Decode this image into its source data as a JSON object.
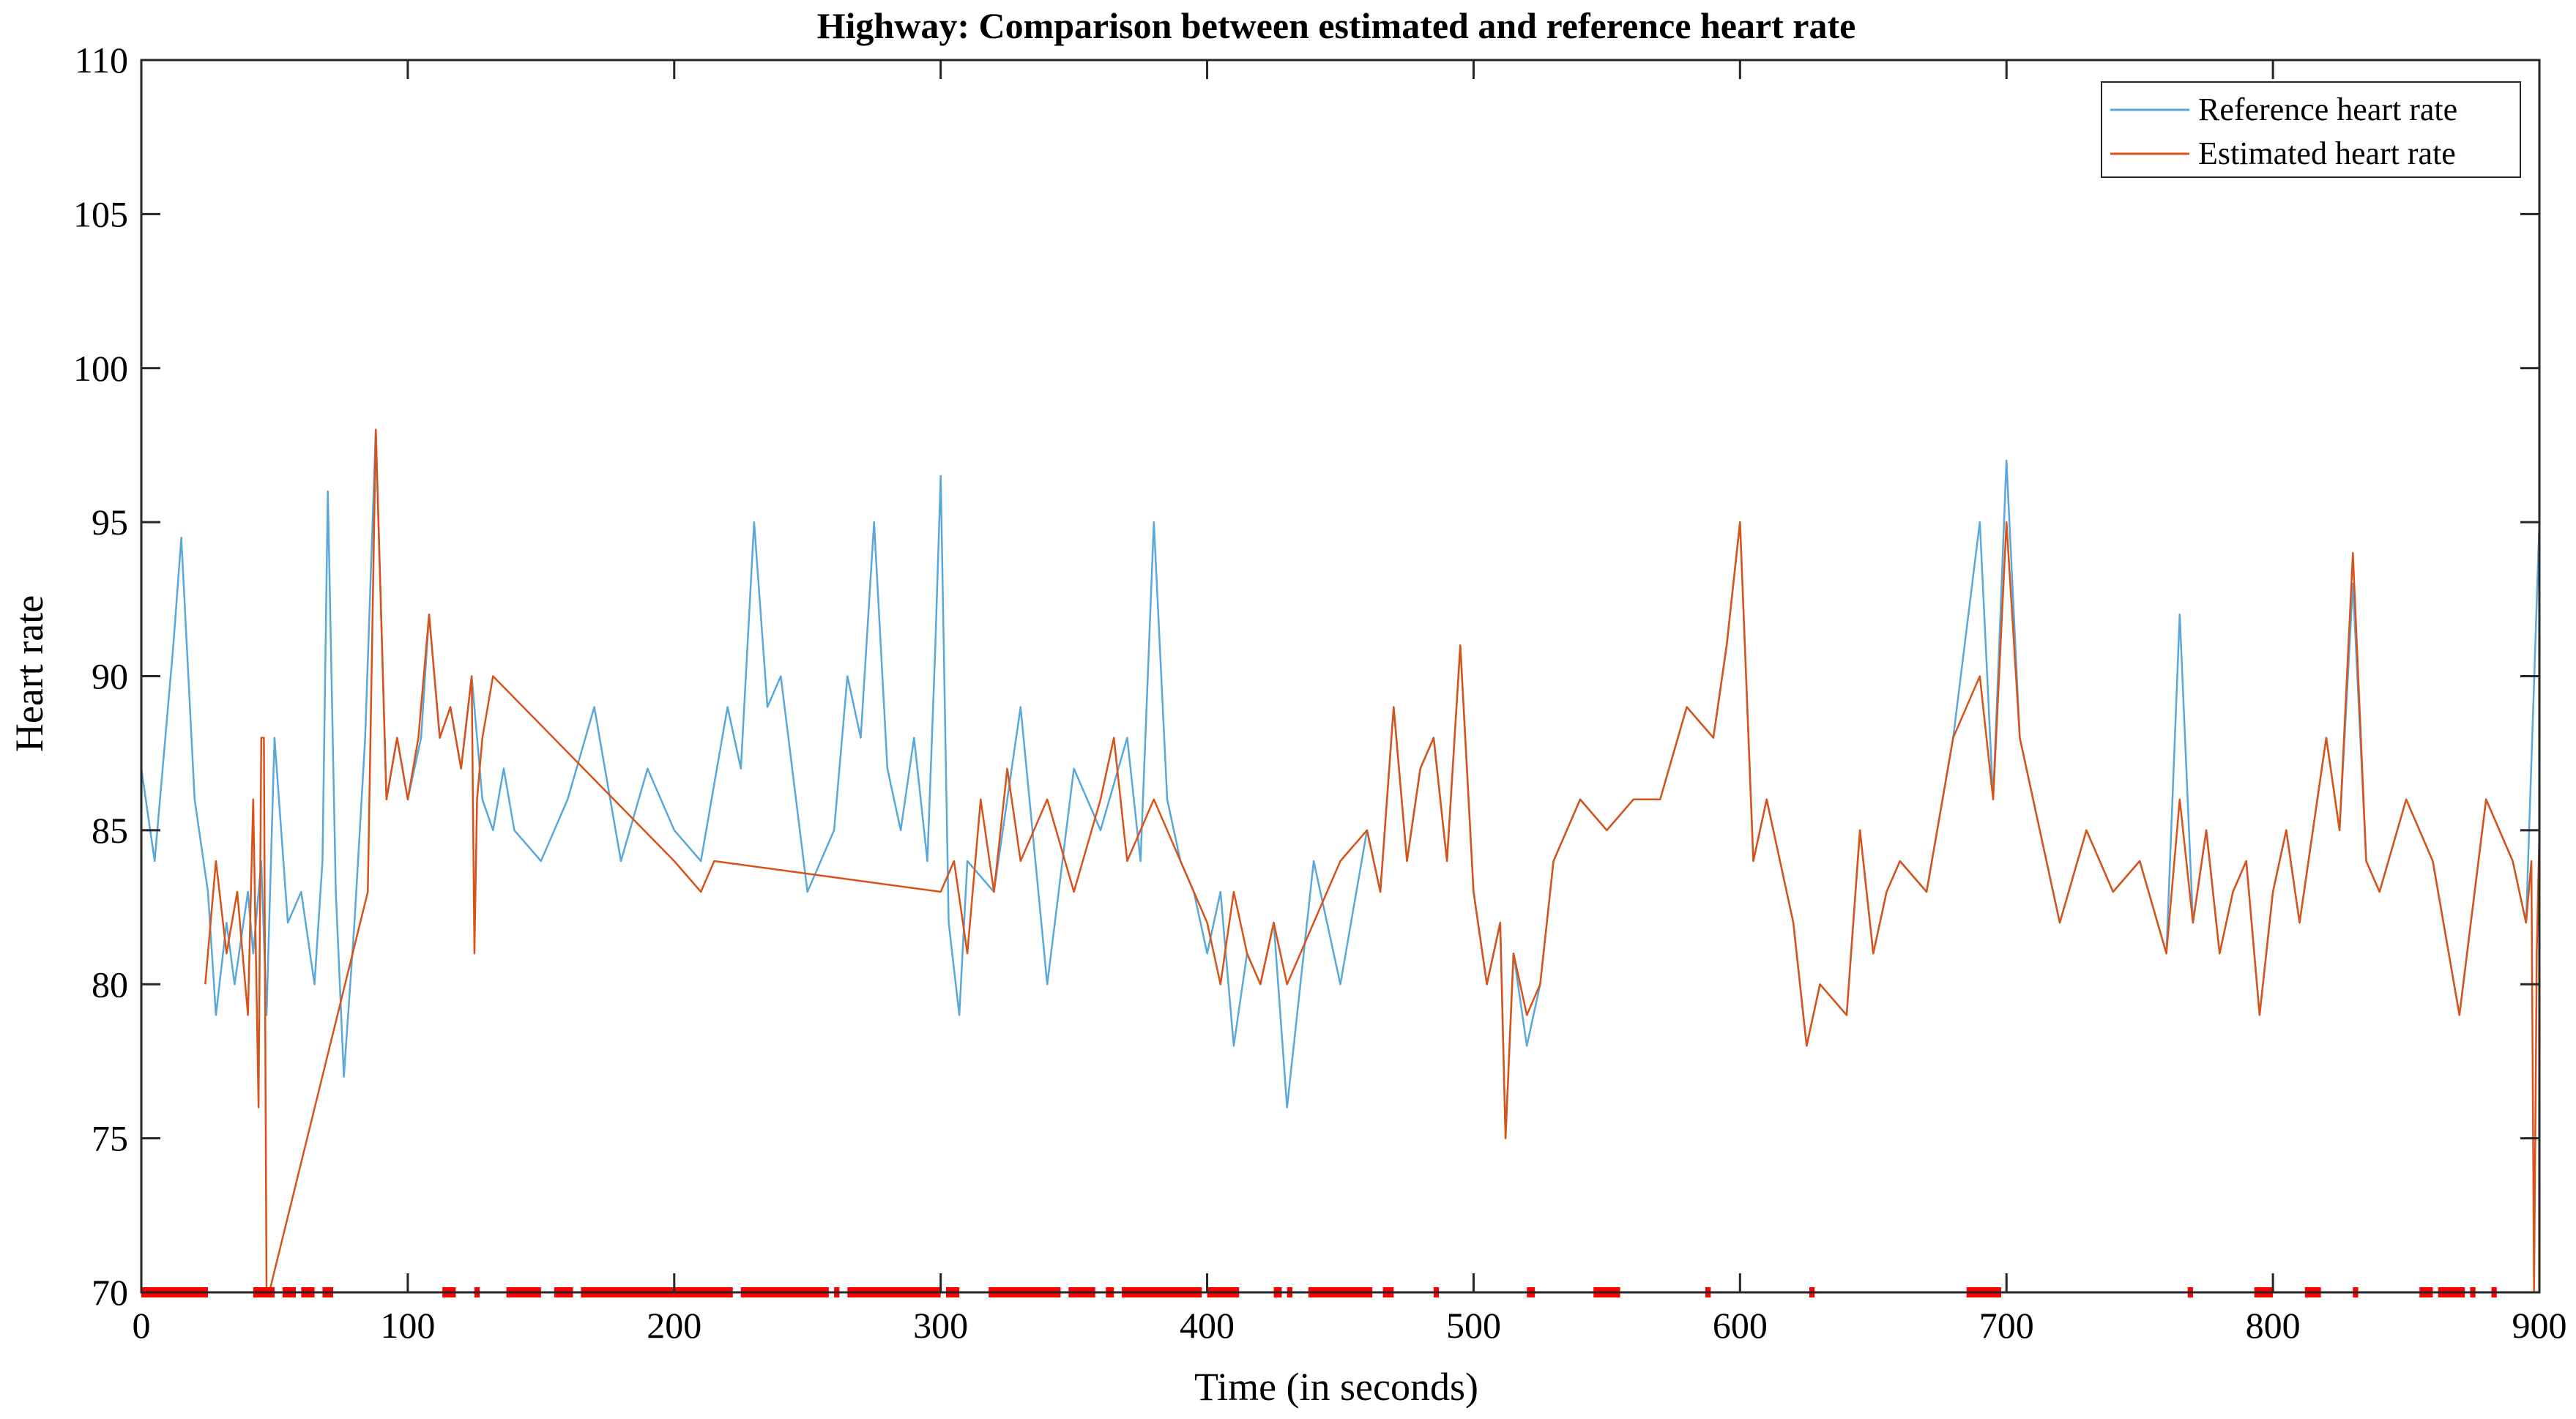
{
  "chart_data": {
    "type": "line",
    "title": "Highway: Comparison between estimated and reference heart rate",
    "xlabel": "Time (in seconds)",
    "ylabel": "Heart rate",
    "xlim": [
      0,
      900
    ],
    "ylim": [
      70,
      110
    ],
    "x_ticks": [
      0,
      100,
      200,
      300,
      400,
      500,
      600,
      700,
      800,
      900
    ],
    "y_ticks": [
      70,
      75,
      80,
      85,
      90,
      95,
      100,
      105,
      110
    ],
    "x_tick_labels": [
      "0",
      "100",
      "200",
      "300",
      "400",
      "500",
      "600",
      "700",
      "800",
      "900"
    ],
    "y_tick_labels": [
      "70",
      "75",
      "80",
      "85",
      "90",
      "95",
      "100",
      "105",
      "110"
    ],
    "legend_position": "top-right",
    "colors": {
      "reference": "#5aa7d9",
      "estimated": "#d95319",
      "markers": "#ff0000",
      "axis": "#262626"
    },
    "series": [
      {
        "name": "Reference heart rate",
        "color": "#5aa7d9",
        "x": [
          0,
          5,
          10,
          12,
          15,
          20,
          25,
          28,
          32,
          35,
          40,
          42,
          45,
          47,
          50,
          55,
          60,
          65,
          68,
          70,
          73,
          76,
          80,
          84,
          88,
          92,
          96,
          100,
          105,
          108,
          112,
          116,
          120,
          124,
          128,
          132,
          136,
          140,
          150,
          160,
          170,
          180,
          190,
          200,
          210,
          220,
          225,
          230,
          235,
          240,
          250,
          260,
          265,
          270,
          275,
          280,
          285,
          290,
          295,
          298,
          300,
          303,
          307,
          310,
          320,
          330,
          340,
          350,
          360,
          370,
          375,
          380,
          385,
          390,
          395,
          400,
          405,
          410,
          415,
          420,
          425,
          430,
          440,
          450,
          460,
          465,
          470,
          475,
          480,
          485,
          490,
          495,
          500,
          505,
          510,
          512,
          515,
          520,
          525,
          530,
          540,
          550,
          560,
          570,
          580,
          590,
          595,
          600,
          605,
          610,
          620,
          625,
          630,
          640,
          645,
          650,
          655,
          660,
          670,
          680,
          690,
          695,
          700,
          705,
          710,
          720,
          730,
          740,
          750,
          760,
          765,
          770,
          775,
          780,
          785,
          790,
          795,
          800,
          805,
          810,
          820,
          825,
          830,
          835,
          840,
          850,
          860,
          870,
          880,
          890,
          895,
          900
        ],
        "y": [
          87,
          84,
          89,
          91,
          94.5,
          86,
          83,
          79,
          82,
          80,
          83,
          81,
          84,
          79,
          88,
          82,
          83,
          80,
          84,
          96,
          83,
          77,
          82,
          88,
          98,
          86,
          88,
          86,
          88,
          92,
          88,
          89,
          87,
          90,
          86,
          85,
          87,
          85,
          84,
          86,
          89,
          84,
          87,
          85,
          84,
          89,
          87,
          95,
          89,
          90,
          83,
          85,
          90,
          88,
          95,
          87,
          85,
          88,
          84,
          91,
          96.5,
          82,
          79,
          84,
          83,
          89,
          80,
          87,
          85,
          88,
          84,
          95,
          86,
          84,
          83,
          81,
          83,
          78,
          81,
          80,
          82,
          76,
          84,
          80,
          85,
          83,
          89,
          84,
          87,
          88,
          84,
          91,
          83,
          80,
          82,
          75,
          81,
          78,
          80,
          84,
          86,
          85,
          86,
          86,
          89,
          88,
          91,
          95,
          84,
          86,
          82,
          78,
          80,
          79,
          85,
          81,
          83,
          84,
          83,
          88,
          95,
          86,
          97,
          88,
          86,
          82,
          85,
          83,
          84,
          81,
          92,
          82,
          85,
          81,
          83,
          84,
          79,
          83,
          85,
          82,
          88,
          85,
          93,
          84,
          83,
          86,
          84,
          79,
          86,
          84,
          82,
          95
        ]
      },
      {
        "name": "Estimated heart rate",
        "color": "#d95319",
        "x": [
          24,
          28,
          32,
          36,
          40,
          42,
          44,
          45,
          46,
          47,
          48,
          85,
          88,
          92,
          96,
          100,
          104,
          108,
          112,
          116,
          120,
          124,
          125,
          126,
          128,
          132,
          200,
          210,
          215,
          300,
          305,
          310,
          315,
          320,
          325,
          330,
          340,
          350,
          360,
          365,
          370,
          375,
          380,
          390,
          400,
          405,
          410,
          415,
          420,
          425,
          430,
          440,
          450,
          460,
          465,
          470,
          475,
          480,
          485,
          490,
          495,
          500,
          505,
          510,
          512,
          515,
          520,
          525,
          530,
          540,
          550,
          560,
          570,
          580,
          590,
          595,
          600,
          605,
          610,
          620,
          625,
          630,
          640,
          645,
          650,
          655,
          660,
          670,
          680,
          690,
          695,
          700,
          705,
          710,
          720,
          730,
          740,
          750,
          760,
          765,
          770,
          775,
          780,
          785,
          790,
          795,
          800,
          805,
          810,
          820,
          825,
          830,
          835,
          840,
          850,
          860,
          870,
          880,
          890,
          895,
          897,
          898,
          899,
          900
        ],
        "y": [
          80,
          84,
          81,
          83,
          79,
          86,
          76,
          88,
          88,
          70,
          70,
          83,
          98,
          86,
          88,
          86,
          88,
          92,
          88,
          89,
          87,
          90,
          81,
          86,
          88,
          90,
          84,
          83,
          84,
          83,
          84,
          81,
          86,
          83,
          87,
          84,
          86,
          83,
          86,
          88,
          84,
          85,
          86,
          84,
          82,
          80,
          83,
          81,
          80,
          82,
          80,
          82,
          84,
          85,
          83,
          89,
          84,
          87,
          88,
          84,
          91,
          83,
          80,
          82,
          75,
          81,
          79,
          80,
          84,
          86,
          85,
          86,
          86,
          89,
          88,
          91,
          95,
          84,
          86,
          82,
          78,
          80,
          79,
          85,
          81,
          83,
          84,
          83,
          88,
          90,
          86,
          95,
          88,
          86,
          82,
          85,
          83,
          84,
          81,
          86,
          82,
          85,
          81,
          83,
          84,
          79,
          83,
          85,
          82,
          88,
          85,
          94,
          84,
          83,
          86,
          84,
          79,
          86,
          84,
          82,
          84,
          70,
          81,
          85
        ]
      }
    ],
    "marker_series": {
      "name": "Outlier markers at 70",
      "y": 70,
      "color": "#ff0000",
      "intervals": [
        [
          0,
          25
        ],
        [
          42,
          50
        ],
        [
          53,
          58
        ],
        [
          60,
          65
        ],
        [
          68,
          72
        ],
        [
          113,
          118
        ],
        [
          125,
          127
        ],
        [
          137,
          150
        ],
        [
          155,
          162
        ],
        [
          165,
          222
        ],
        [
          225,
          258
        ],
        [
          260,
          262
        ],
        [
          265,
          300
        ],
        [
          302,
          307
        ],
        [
          318,
          345
        ],
        [
          348,
          358
        ],
        [
          362,
          365
        ],
        [
          368,
          398
        ],
        [
          400,
          412
        ],
        [
          425,
          428
        ],
        [
          430,
          432
        ],
        [
          438,
          462
        ],
        [
          466,
          470
        ],
        [
          485,
          487
        ],
        [
          520,
          523
        ],
        [
          545,
          555
        ],
        [
          587,
          589
        ],
        [
          626,
          628
        ],
        [
          685,
          698
        ],
        [
          768,
          770
        ],
        [
          793,
          800
        ],
        [
          812,
          818
        ],
        [
          830,
          832
        ],
        [
          855,
          860
        ],
        [
          862,
          872
        ],
        [
          874,
          876
        ],
        [
          882,
          884
        ]
      ]
    },
    "legend": [
      "Reference heart rate",
      "Estimated heart rate"
    ]
  }
}
